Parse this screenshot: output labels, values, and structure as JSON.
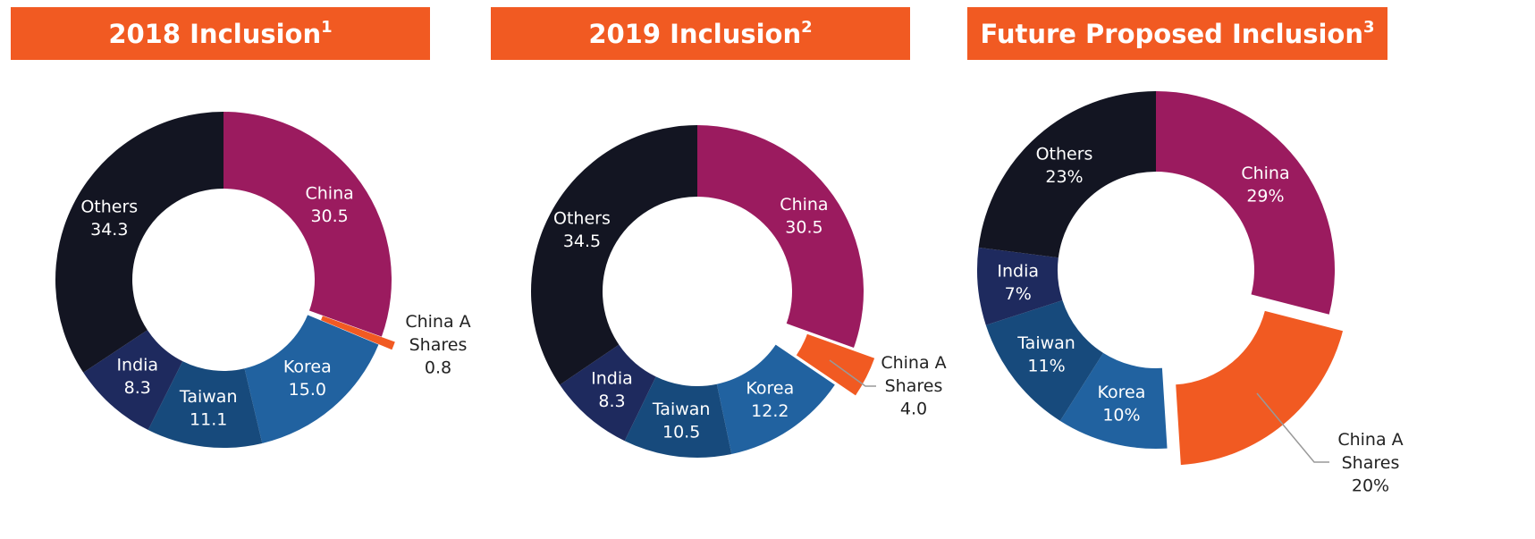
{
  "chart_data": [
    {
      "type": "donut",
      "title": "2018 Inclusion",
      "title_note": "1",
      "categories": [
        "China",
        "China A\nShares",
        "Korea",
        "Taiwan",
        "India",
        "Others"
      ],
      "values": [
        30.5,
        0.8,
        15,
        11.1,
        8.3,
        34.3
      ],
      "value_labels": [
        "30.5",
        "0.8",
        "15.0",
        "11.1",
        "8.3",
        "34.3"
      ],
      "colors": [
        "#9b1b5f",
        "#f15a22",
        "#2162a0",
        "#174a7c",
        "#1e2a5e",
        "#131522"
      ],
      "explode_index": 1
    },
    {
      "type": "donut",
      "title": "2019 Inclusion",
      "title_note": "2",
      "categories": [
        "China",
        "China A\nShares",
        "Korea",
        "Taiwan",
        "India",
        "Others"
      ],
      "values": [
        30.5,
        4,
        12.2,
        10.5,
        8.3,
        34.5
      ],
      "value_labels": [
        "30.5",
        "4.0",
        "12.2",
        "10.5",
        "8.3",
        "34.5"
      ],
      "colors": [
        "#9b1b5f",
        "#f15a22",
        "#2162a0",
        "#174a7c",
        "#1e2a5e",
        "#131522"
      ],
      "explode_index": 1
    },
    {
      "type": "donut",
      "title": "Future Proposed Inclusion",
      "title_note": "3",
      "categories": [
        "China",
        "China A\nShares",
        "Korea",
        "Taiwan",
        "India",
        "Others"
      ],
      "values": [
        29,
        20,
        10,
        11,
        7,
        23
      ],
      "value_labels": [
        "29%",
        "20%",
        "10%",
        "11%",
        "7%",
        "23%"
      ],
      "colors": [
        "#9b1b5f",
        "#f15a22",
        "#2162a0",
        "#174a7c",
        "#1e2a5e",
        "#131522"
      ],
      "explode_index": 1
    }
  ]
}
